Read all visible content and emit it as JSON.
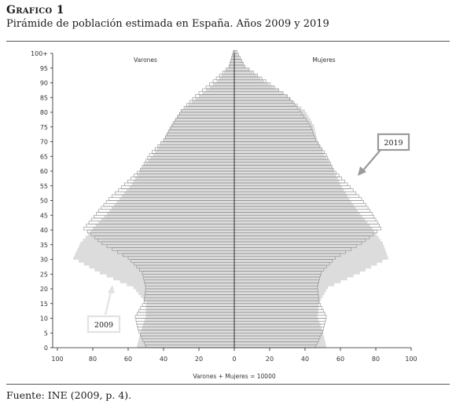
{
  "header": {
    "title": "Grafico 1",
    "subtitle": "Pirámide de población estimada en España. Años 2009 y 2019"
  },
  "footer": {
    "source": "Fuente: INE (2009, p. 4)."
  },
  "chart_data": {
    "type": "bar",
    "orientation": "horizontal-population-pyramid",
    "xlabel": "Varones + Mujeres = 10000",
    "left_label": "Varones",
    "right_label": "Mujeres",
    "xlim": [
      -100,
      100
    ],
    "x_ticks": [
      "100",
      "80",
      "60",
      "40",
      "20",
      "0",
      "20",
      "40",
      "60",
      "80",
      "100"
    ],
    "y_ticks": [
      "0",
      "5",
      "10",
      "15",
      "20",
      "25",
      "30",
      "35",
      "40",
      "45",
      "50",
      "55",
      "60",
      "65",
      "70",
      "75",
      "80",
      "85",
      "90",
      "95",
      "100+"
    ],
    "ages": [
      0,
      5,
      10,
      15,
      20,
      25,
      30,
      35,
      40,
      45,
      50,
      55,
      60,
      65,
      70,
      75,
      80,
      85,
      90,
      95,
      100
    ],
    "series": [
      {
        "name": "2009",
        "style": "filled-light-gray",
        "men": [
          55,
          53,
          50,
          50,
          57,
          76,
          91,
          87,
          80,
          72,
          65,
          58,
          53,
          46,
          40,
          36,
          30,
          20,
          10,
          3,
          0.5
        ],
        "women": [
          52,
          50,
          47,
          48,
          53,
          71,
          87,
          84,
          78,
          71,
          65,
          60,
          56,
          51,
          47,
          45,
          40,
          30,
          17,
          6,
          1
        ]
      },
      {
        "name": "2019",
        "style": "outlined-bars",
        "men": [
          50,
          54,
          56,
          51,
          50,
          52,
          60,
          75,
          85,
          78,
          71,
          62,
          53,
          48,
          40,
          35,
          30,
          22,
          12,
          3,
          0.5
        ],
        "women": [
          46,
          50,
          52,
          48,
          47,
          49,
          57,
          72,
          83,
          78,
          72,
          64,
          56,
          52,
          46,
          43,
          37,
          30,
          18,
          6,
          1.5
        ]
      }
    ],
    "annotations": [
      "2019",
      "2009"
    ],
    "colors": {
      "fill_2009": "#dcdcdc",
      "bar_outline_2019": "#8a8a8a",
      "callout_2019": "#9a9a9a",
      "callout_2009": "#e2e2e2"
    }
  }
}
